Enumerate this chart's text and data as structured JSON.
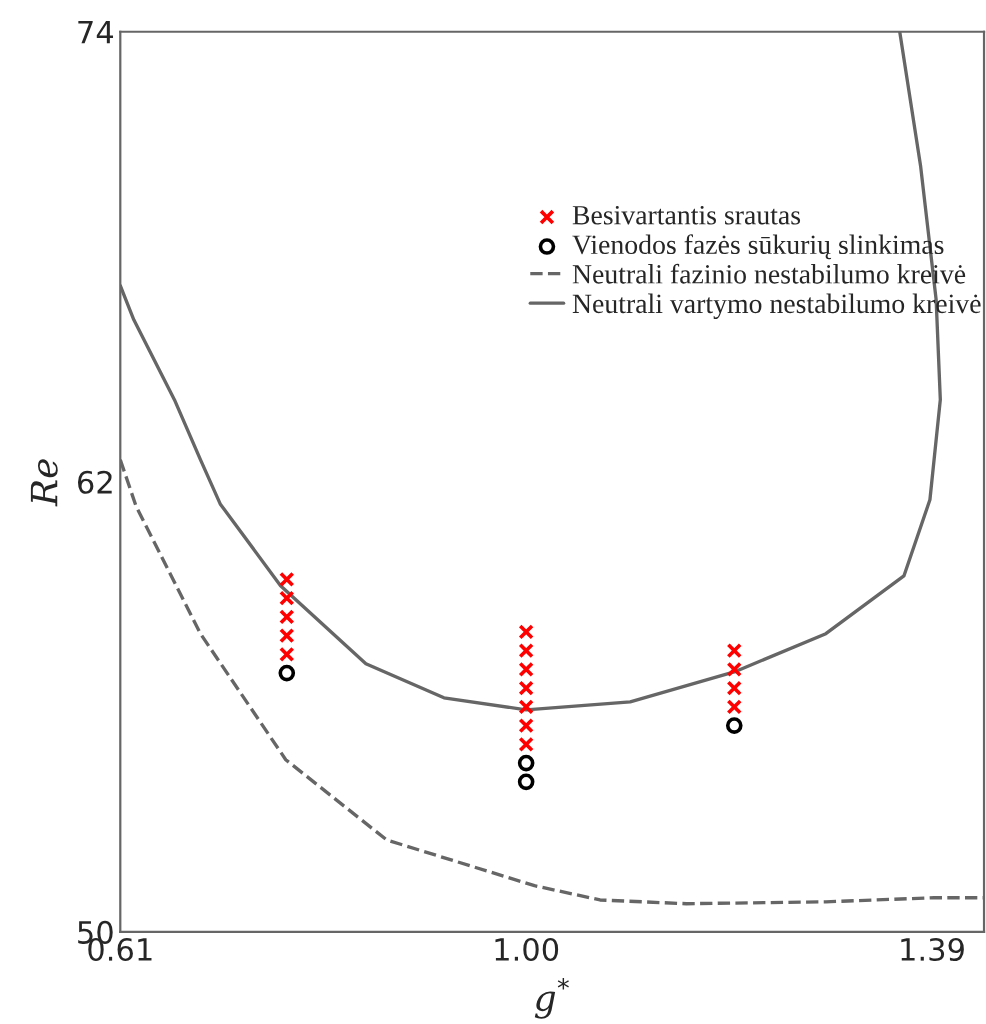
{
  "chart_data": {
    "type": "scatter",
    "xlabel": "g$^{*}$",
    "ylabel": "Re",
    "xlim": [
      0.61,
      1.44
    ],
    "ylim": [
      50,
      74
    ],
    "xticks": [
      {
        "value": 0.61,
        "label": "0.61"
      },
      {
        "value": 1.0,
        "label": "1.00"
      },
      {
        "value": 1.39,
        "label": "1.39"
      }
    ],
    "yticks": [
      50,
      62,
      74
    ],
    "grid": false,
    "legend": "top right",
    "series": [
      {
        "name": "Besivartantis srautas",
        "marker": "cross",
        "color": "#ff0000",
        "x": [
          0.77,
          0.77,
          0.77,
          0.77,
          0.77,
          1.0,
          1.0,
          1.0,
          1.0,
          1.0,
          1.0,
          1.0,
          1.2,
          1.2,
          1.2,
          1.2
        ],
        "values": [
          59.4,
          58.9,
          58.4,
          57.9,
          57.4,
          58.0,
          57.5,
          57.0,
          56.5,
          56.0,
          55.5,
          55.0,
          57.5,
          57.0,
          56.5,
          56.0
        ]
      },
      {
        "name": "Vienodos fazės sūkurių slinkimas",
        "marker": "circle",
        "color": "#000000",
        "x": [
          0.77,
          1.0,
          1.0,
          1.2
        ],
        "values": [
          56.9,
          54.5,
          54.0,
          55.5
        ]
      },
      {
        "name": "Neutrali fazinio nestabilumo kreivė",
        "type": "line",
        "line_style": "dashed",
        "color": "#666666",
        "x": [
          0.61,
          0.625,
          0.687,
          0.769,
          0.866,
          1.008,
          1.071,
          1.154,
          1.288,
          1.392,
          1.44
        ],
        "values": [
          62.59,
          61.36,
          57.95,
          54.59,
          52.45,
          51.23,
          50.85,
          50.75,
          50.8,
          50.91,
          50.91
        ]
      },
      {
        "name": "Neutrali vartymo nestabilumo kreivė",
        "type": "line",
        "line_style": "solid",
        "color": "#666666",
        "x": [
          0.61,
          0.623,
          0.662,
          0.687,
          0.706,
          0.764,
          0.846,
          0.921,
          1.0,
          1.1,
          1.2,
          1.288,
          1.363,
          1.388,
          1.398,
          1.394,
          1.379,
          1.359
        ],
        "values": [
          67.23,
          66.32,
          64.19,
          62.59,
          61.41,
          59.23,
          57.15,
          56.24,
          55.92,
          56.13,
          56.93,
          57.95,
          59.49,
          61.52,
          64.19,
          66.85,
          70.43,
          74.0
        ]
      }
    ]
  }
}
